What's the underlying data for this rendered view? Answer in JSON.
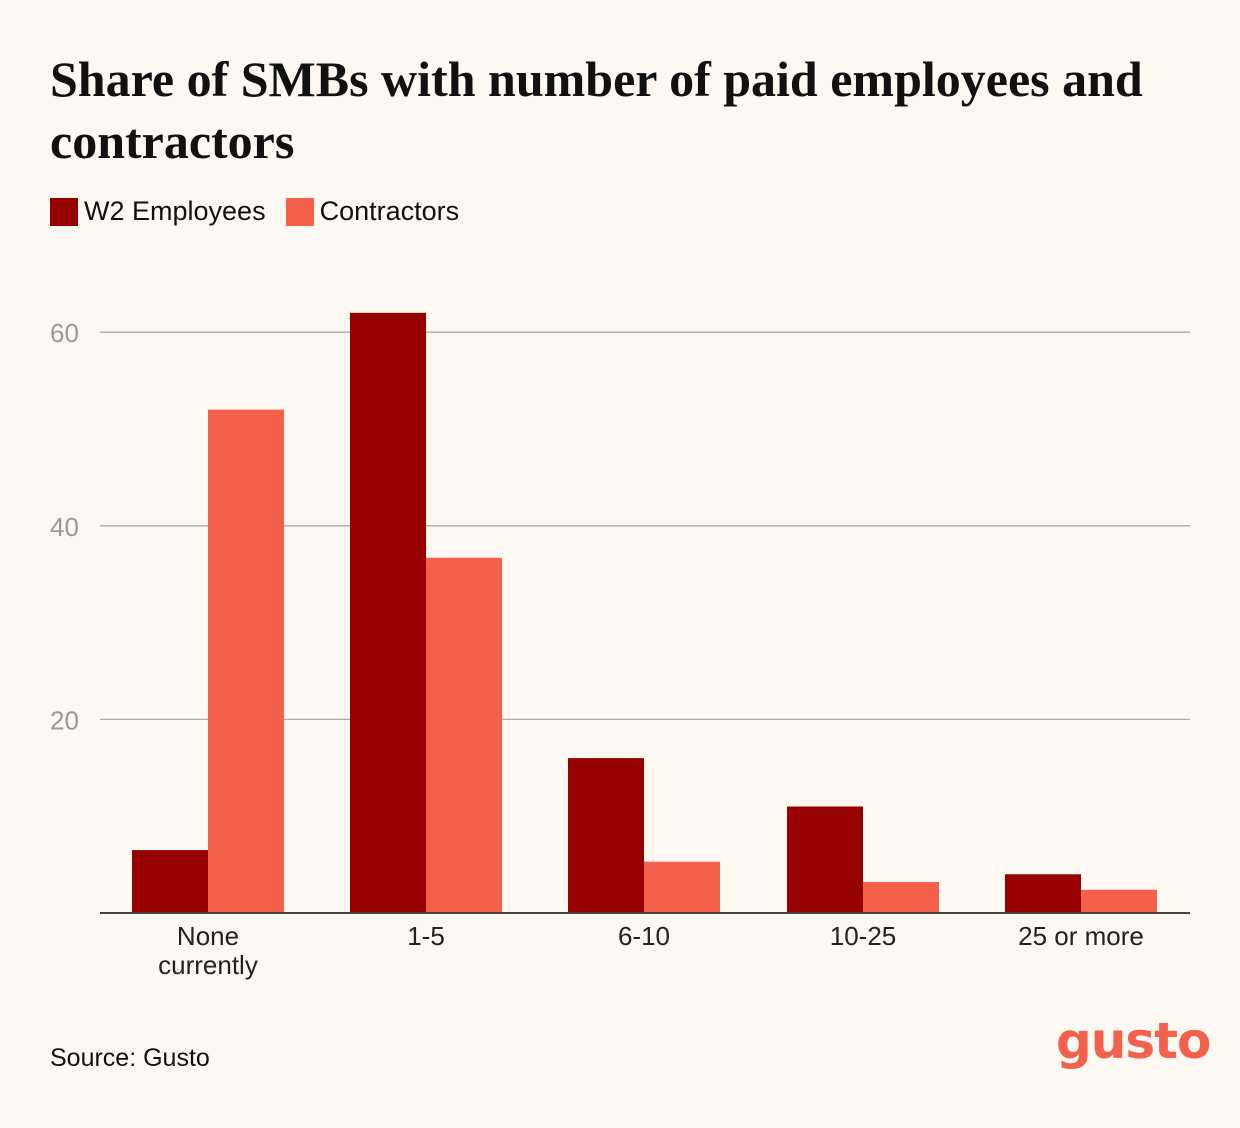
{
  "title": "Share of SMBs with number of paid employees and contractors",
  "legend": {
    "employees": "W2 Employees",
    "contractors": "Contractors"
  },
  "colors": {
    "employees": "#960000",
    "contractors": "#f3604c",
    "grid": "#aaaaaa",
    "axis": "#444444",
    "tick_text": "#999999",
    "logo": "#f3604c"
  },
  "chart_data": {
    "type": "bar",
    "title": "Share of SMBs with number of paid employees and contractors",
    "xlabel": "",
    "ylabel": "",
    "categories": [
      [
        "None",
        "currently"
      ],
      [
        "1-5"
      ],
      [
        "6-10"
      ],
      [
        "10-25"
      ],
      [
        "25 or more"
      ]
    ],
    "series": [
      {
        "name": "W2 Employees",
        "key": "employees",
        "values": [
          6.5,
          62,
          16,
          11,
          4
        ]
      },
      {
        "name": "Contractors",
        "key": "contractors",
        "values": [
          52,
          36.7,
          5.3,
          3.2,
          2.4
        ]
      }
    ],
    "yticks": [
      20,
      40,
      60
    ],
    "ylim": [
      0,
      62
    ],
    "grid": true,
    "legend_position": "top-left"
  },
  "source": "Source: Gusto",
  "logo": "gusto"
}
